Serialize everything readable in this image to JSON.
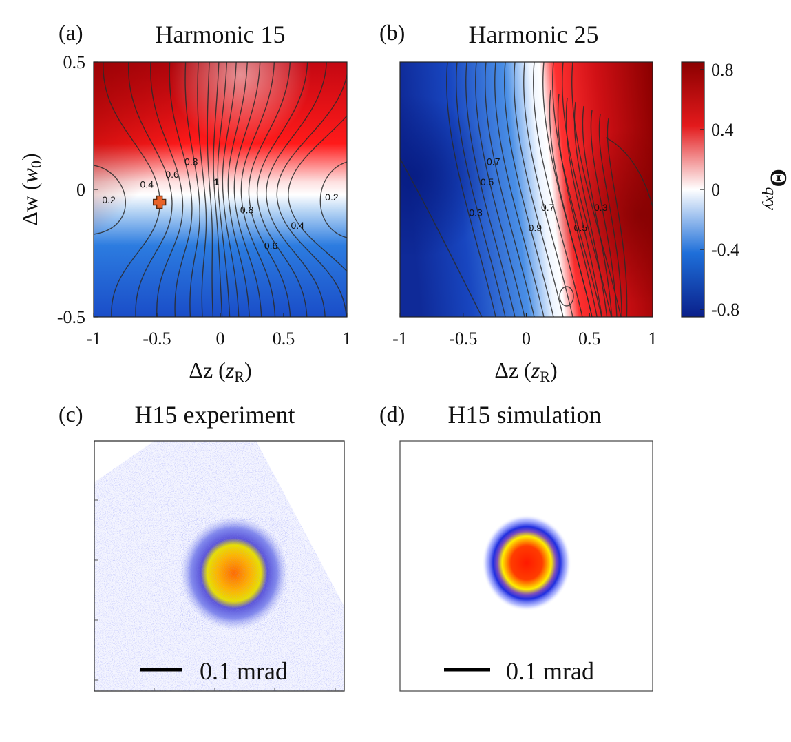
{
  "panels": {
    "a": {
      "label": "(a)",
      "title": "Harmonic 15"
    },
    "b": {
      "label": "(b)",
      "title": "Harmonic 25"
    },
    "c": {
      "label": "(c)",
      "title": "H15 experiment",
      "scalebar": "0.1 mrad"
    },
    "d": {
      "label": "(d)",
      "title": "H15 simulation",
      "scalebar": "0.1 mrad"
    }
  },
  "axes": {
    "xlabel": "Δz (z_R)",
    "ylabel": "Δw (w_0)",
    "xticks": [
      "-1",
      "-0.5",
      "0",
      "0.5",
      "1"
    ],
    "yticks": [
      "0.5",
      "0",
      "-0.5"
    ]
  },
  "colorbar": {
    "label": "Θ_qxy",
    "ticks": [
      "0.8",
      "0.4",
      "0",
      "-0.4",
      "-0.8"
    ],
    "range": [
      -0.85,
      0.85
    ],
    "colors": {
      "negative": "#0a1f8a",
      "zero": "#ffffff",
      "positive": "#8b0000"
    }
  },
  "chart_data": [
    {
      "type": "heatmap",
      "title": "Harmonic 15",
      "xlabel": "Δz (z_R)",
      "ylabel": "Δw (w_0)",
      "xlim": [
        -1,
        1
      ],
      "ylim": [
        -0.5,
        0.5
      ],
      "value_range": [
        -0.85,
        0.85
      ],
      "contour_labels": [
        {
          "text": "0.2",
          "x": -0.88,
          "y": -0.04
        },
        {
          "text": "0.4",
          "x": -0.58,
          "y": 0.02
        },
        {
          "text": "0.6",
          "x": -0.38,
          "y": 0.06
        },
        {
          "text": "0.8",
          "x": -0.23,
          "y": 0.11
        },
        {
          "text": "1",
          "x": -0.03,
          "y": 0.03
        },
        {
          "text": "0.8",
          "x": 0.21,
          "y": -0.08
        },
        {
          "text": "0.4",
          "x": 0.61,
          "y": -0.14
        },
        {
          "text": "0.6",
          "x": 0.4,
          "y": -0.22
        },
        {
          "text": "0.2",
          "x": 0.88,
          "y": -0.03
        }
      ],
      "marker": {
        "x": -0.48,
        "y": -0.05,
        "color": "#e8632a"
      }
    },
    {
      "type": "heatmap",
      "title": "Harmonic 25",
      "xlabel": "Δz (z_R)",
      "xlim": [
        -1,
        1
      ],
      "ylim": [
        -0.5,
        0.5
      ],
      "value_range": [
        -0.85,
        0.85
      ],
      "contour_labels": [
        {
          "text": "0.7",
          "x": -0.26,
          "y": 0.11
        },
        {
          "text": "0.5",
          "x": -0.31,
          "y": 0.03
        },
        {
          "text": "0.3",
          "x": -0.4,
          "y": -0.09
        },
        {
          "text": "0.7",
          "x": 0.17,
          "y": -0.07
        },
        {
          "text": "0.9",
          "x": 0.07,
          "y": -0.15
        },
        {
          "text": "0.5",
          "x": 0.43,
          "y": -0.15
        },
        {
          "text": "0.3",
          "x": 0.59,
          "y": -0.07
        }
      ]
    }
  ]
}
